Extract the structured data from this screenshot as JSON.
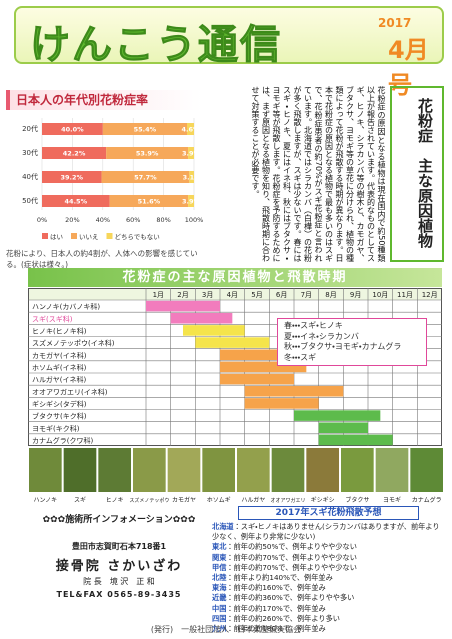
{
  "header": {
    "title": "けんこう通信",
    "year": "2017",
    "issue": "4月号"
  },
  "chart_data": {
    "type": "stacked-bar-horizontal",
    "title": "日本人の年代別花粉症率",
    "categories": [
      "20代",
      "30代",
      "40代",
      "50代"
    ],
    "series": [
      {
        "name": "はい",
        "color": "#ef6b5d",
        "values": [
          40.0,
          42.2,
          39.2,
          44.5
        ],
        "value_labels": [
          "40.0%",
          "42.2%",
          "39.2%",
          "44.5%"
        ]
      },
      {
        "name": "いいえ",
        "color": "#f6a85a",
        "values": [
          55.4,
          53.9,
          57.7,
          51.6
        ],
        "value_labels": [
          "55.4%",
          "53.9%",
          "57.7%",
          "51.6%"
        ]
      },
      {
        "name": "どちらでもない",
        "color": "#f7d65a",
        "values": [
          4.6,
          3.9,
          3.1,
          3.9
        ],
        "value_labels": [
          "4.6%",
          "3.9%",
          "3.1%",
          "3.9%"
        ]
      }
    ],
    "xlim": [
      0,
      100
    ],
    "xticks": [
      {
        "value": 0,
        "label": "0%"
      },
      {
        "value": 20,
        "label": "20%"
      },
      {
        "value": 40,
        "label": "40%"
      },
      {
        "value": 60,
        "label": "60%"
      },
      {
        "value": 80,
        "label": "80%"
      },
      {
        "value": 100,
        "label": "100%"
      }
    ],
    "caption": "花粉により、日本人の約4割が、人体への影響を感じている。(症状は様々。)"
  },
  "article": {
    "heading": "花粉症　主な原因植物",
    "body": "花粉症の原因となる植物は現在国内で約50種類以上が報告されています。代表的なものとしてスギ、ヒノキ、シラカンバ等の樹木と、カモガヤ、ブタクサ、ヨモギ等の草花に分けられ、植物の種類によって花粉が飛散する時期が異なります。日本で花粉症の原因となる植物で最も多いのはスギで、花粉症患者の約70%がスギ花粉症と言われています。北海道ではシラカンバ（白樺）の花粉が多く飛散しますが、スギは少ないです。春にはスギ・ヒノキ、夏にはイネ科、秋にはブタクサ・ヨモギ等が飛散します。花粉症を予防するためには、まず原因となる植物を知り、飛散時期に合わせて対策することが必要です。"
  },
  "gantt": {
    "title": "花粉症の主な原因植物と飛散時期",
    "months": [
      "1月",
      "2月",
      "3月",
      "4月",
      "5月",
      "6月",
      "7月",
      "8月",
      "9月",
      "10月",
      "11月",
      "12月"
    ],
    "rows": [
      {
        "name": "ハンノキ(カバノキ科)",
        "start": 1,
        "end": 4,
        "color": "#f27cbd"
      },
      {
        "name": "スギ(スギ科)",
        "start": 2,
        "end": 4.5,
        "color": "#f27cbd"
      },
      {
        "name": "ヒノキ(ヒノキ科)",
        "start": 2.5,
        "end": 5,
        "color": "#f5e44b"
      },
      {
        "name": "スズメノテッポウ(イネ科)",
        "start": 3,
        "end": 6,
        "color": "#f5e44b"
      },
      {
        "name": "カモガヤ(イネ科)",
        "start": 4,
        "end": 7,
        "color": "#f6a34a"
      },
      {
        "name": "ホソムギ(イネ科)",
        "start": 4,
        "end": 7.5,
        "color": "#f6a34a"
      },
      {
        "name": "ハルガヤ(イネ科)",
        "start": 4,
        "end": 7,
        "color": "#f6a34a"
      },
      {
        "name": "オオアワガエリ(イネ科)",
        "start": 5,
        "end": 9,
        "color": "#f6a34a"
      },
      {
        "name": "ギシギシ(タデ科)",
        "start": 5,
        "end": 8,
        "color": "#f6a34a"
      },
      {
        "name": "ブタクサ(キク科)",
        "start": 7,
        "end": 10.5,
        "color": "#5dbb4c"
      },
      {
        "name": "ヨモギ(キク科)",
        "start": 8,
        "end": 10,
        "color": "#5dbb4c"
      },
      {
        "name": "カナムグラ(クワ科)",
        "start": 8,
        "end": 11,
        "color": "#5dbb4c"
      }
    ],
    "legend": [
      "春・・・スギ・ヒノキ",
      "夏・・・イネ・シラカンバ",
      "秋・・・ブタクサ・ヨモギ・カナムグラ",
      "冬・・・スギ"
    ]
  },
  "photo_labels": [
    "ハンノキ",
    "スギ",
    "ヒノキ",
    "スズメノテッポウ",
    "カモガヤ",
    "ホソムギ",
    "ハルガヤ",
    "オオアワガエリ",
    "ギシギシ",
    "ブタクサ",
    "ヨモギ",
    "カナムグラ"
  ],
  "clinic": {
    "heading": "✿✿✿施術所インフォメーション✿✿✿",
    "address": "豊田市志賀町石本718番1",
    "name": "接骨院 さかいざわ",
    "director": "院 長　境 沢　正 和",
    "tel": "TEL&FAX 0565-89-3435"
  },
  "forecast": {
    "title": "2017年スギ花粉飛散予想",
    "items": [
      {
        "region": "北海道",
        "text": "：スギ・ヒノキはありません(シラカンバはありますが、前年より少なく、例年より非常に少ない)"
      },
      {
        "region": "東北",
        "text": "：前年の約50%で、例年よりやや少ない"
      },
      {
        "region": "関東",
        "text": "：前年の約70%で、例年よりやや少ない"
      },
      {
        "region": "甲信",
        "text": "：前年の約70%で、例年よりやや少ない"
      },
      {
        "region": "北陸",
        "text": "：前年より約140%で、例年並み"
      },
      {
        "region": "東海",
        "text": "：前年の約160%で、例年並み"
      },
      {
        "region": "近畿",
        "text": "：前年の約360%で、例年よりやや多い"
      },
      {
        "region": "中国",
        "text": "：前年の約170%で、例年並み"
      },
      {
        "region": "四国",
        "text": "：前年の約260%で、例年より多い"
      },
      {
        "region": "九州",
        "text": "：前年の約180%で、例年並み"
      }
    ]
  },
  "footer": "(発行)　一般社団法人　日本柔整鍼灸協会"
}
